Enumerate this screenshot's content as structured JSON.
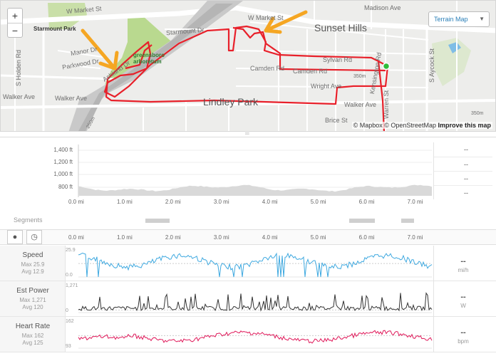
{
  "map": {
    "labels": {
      "w_market_st_1": "W Market St",
      "w_market_st_2": "W Market St",
      "madison_ave": "Madison Ave",
      "starmount_park": "Starmount Park",
      "starmount_dr": "Starmount Dr",
      "sunset_hills": "Sunset Hills",
      "manor_dr": "Manor Dr",
      "parkwood_dr": "Parkwood Dr",
      "ashland_dr": "Ashland Dr",
      "greensboro_arboretum": "greensboro arboretum",
      "sylvan_rd": "Sylvan Rd",
      "camden_rd_1": "Camden Rd",
      "camden_rd_2": "Camden Rd",
      "wright_ave": "Wright Ave",
      "walker_ave_1": "Walker Ave",
      "walker_ave_2": "Walker Ave",
      "walker_ave_3": "Walker Ave",
      "lindley_park": "Lindley Park",
      "brice_st": "Brice St",
      "s_holden_rd": "S Holden Rd",
      "kensington_rd": "Kensington Rd",
      "warren_st": "Warren St",
      "s_aycock_st": "S Aycock St",
      "elev_350_1": "350m",
      "elev_350_2": "350m",
      "elev_250": "250m"
    },
    "terrain_button": "Terrain Map",
    "zoom_in": "+",
    "zoom_out": "−",
    "attribution": {
      "mapbox": "© Mapbox",
      "osm": "© OpenStreetMap",
      "improve": "Improve this map"
    },
    "route_color": "#e8202a",
    "annotation_color": "#f5a623",
    "start_color": "#2ebd3a"
  },
  "elevation": {
    "y_ticks": [
      "1,400 ft",
      "1,200 ft",
      "1,000 ft",
      "800 ft"
    ],
    "right_values": [
      "--",
      "--",
      "--",
      "--"
    ],
    "fill_color": "#d9d9d9"
  },
  "x_ticks": [
    "0.0 mi",
    "1.0 mi",
    "2.0 mi",
    "3.0 mi",
    "4.0 mi",
    "5.0 mi",
    "6.0 mi",
    "7.0 mi"
  ],
  "segments": {
    "label": "Segments"
  },
  "streams": {
    "pin_icon": "map-pin-icon",
    "clock_icon": "clock-icon",
    "rows": [
      {
        "title": "Speed",
        "max": "Max 25.9",
        "avg": "Avg 12.9",
        "ytop": "25.9",
        "ybottom": "0.0",
        "value": "--",
        "unit": "mi/h",
        "color": "#3fa9e0",
        "max_value": 25.9,
        "avg_value": 12.9,
        "min_value": 0
      },
      {
        "title": "Est Power",
        "max": "Max 1,271",
        "avg": "Avg 120",
        "ytop": "1,271",
        "ybottom": "0",
        "value": "--",
        "unit": "W",
        "color": "#333333",
        "max_value": 1271,
        "avg_value": 120,
        "min_value": 0
      },
      {
        "title": "Heart Rate",
        "max": "Max 162",
        "avg": "Avg 125",
        "ytop": "162",
        "ybottom": "93",
        "value": "--",
        "unit": "bpm",
        "color": "#e0195a",
        "max_value": 162,
        "avg_value": 125,
        "min_value": 93
      }
    ]
  }
}
